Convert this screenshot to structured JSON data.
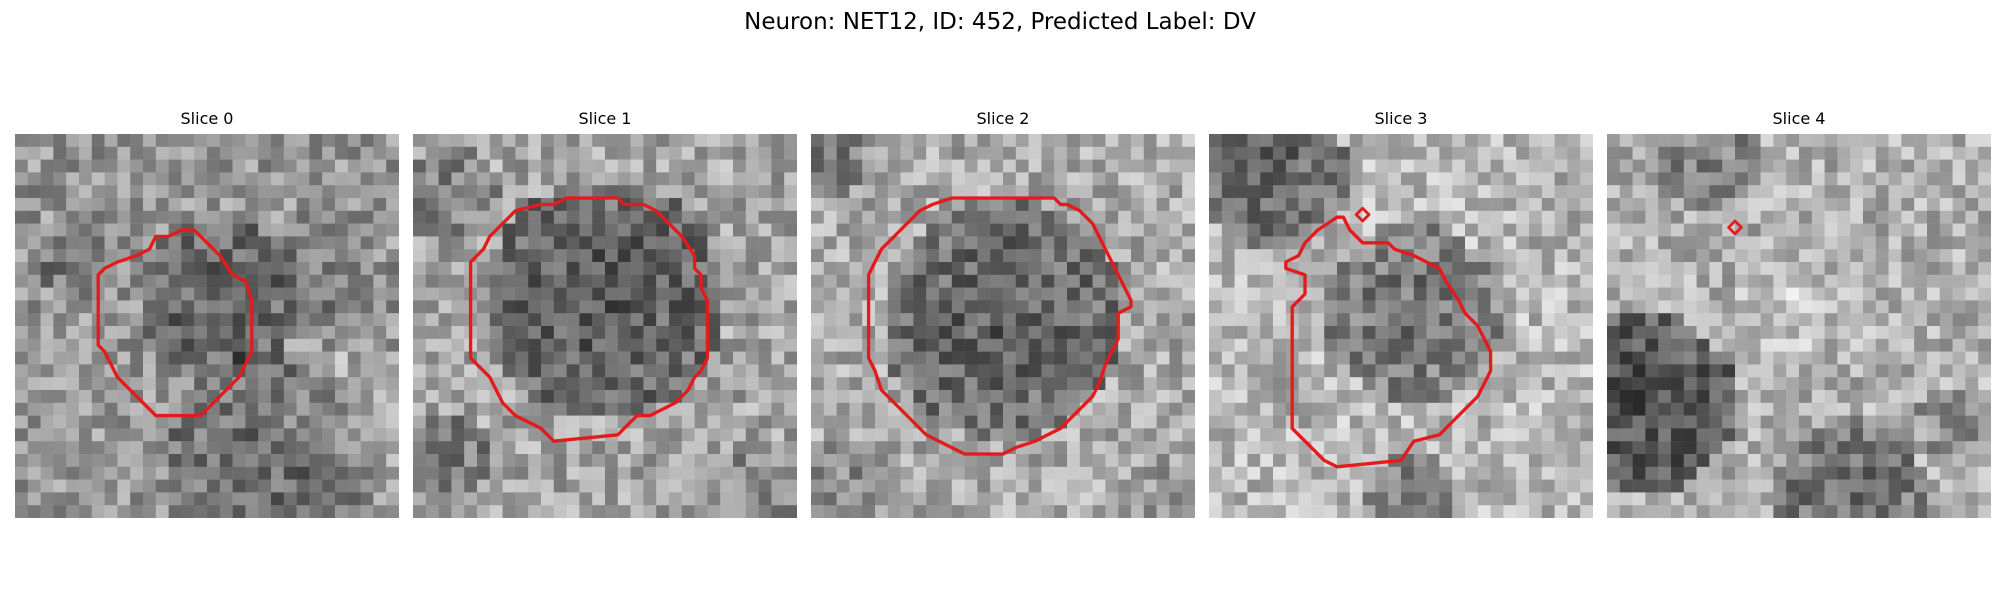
{
  "figure": {
    "title": "Neuron: NET12, ID: 452, Predicted Label: DV"
  },
  "colors": {
    "outline": "#e41a1c",
    "background": "#ffffff"
  },
  "panels": [
    {
      "title": "Slice 0"
    },
    {
      "title": "Slice 1"
    },
    {
      "title": "Slice 2"
    },
    {
      "title": "Slice 3"
    },
    {
      "title": "Slice 4"
    }
  ]
}
